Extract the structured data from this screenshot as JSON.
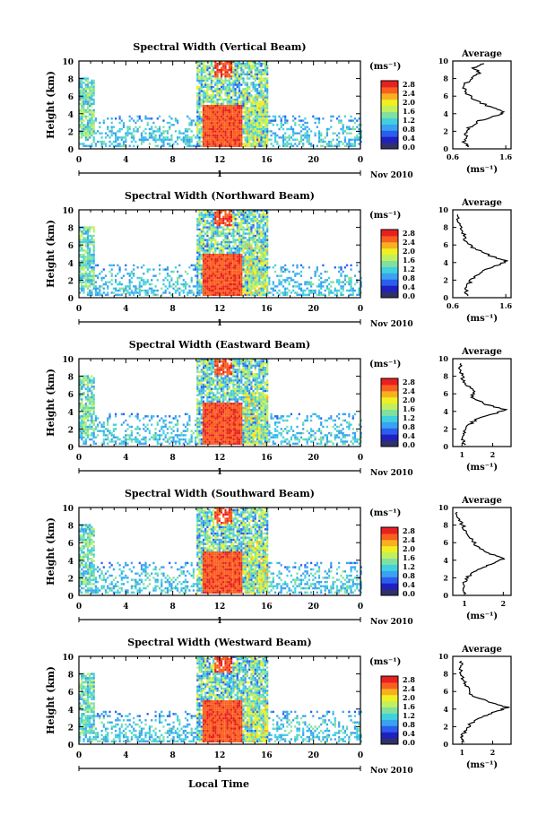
{
  "figure": {
    "xlabel": "Local Time",
    "date_label": "Nov 2010",
    "day_label": "1",
    "height_label": "Height (km)",
    "unit_label": "(ms⁻¹)",
    "avg_title": "Average"
  },
  "colorbar": {
    "ticks": [
      "2.8",
      "2.4",
      "2.0",
      "1.6",
      "1.2",
      "0.8",
      "0.4",
      "0.0"
    ],
    "colors": [
      "#30306a",
      "#2020c0",
      "#2b5ef0",
      "#3aa2f0",
      "#40d0e0",
      "#80e0a0",
      "#c0f060",
      "#f0f020",
      "#f8b020",
      "#f86020",
      "#e82020"
    ]
  },
  "chart_data": [
    {
      "type": "heatmap",
      "title": "Spectral Width (Vertical Beam)",
      "xlabel": "Local Time",
      "ylabel": "Height (km)",
      "x_ticks": [
        "0",
        "4",
        "8",
        "12",
        "16",
        "20",
        "0"
      ],
      "y_ticks": [
        "0",
        "2",
        "4",
        "6",
        "8",
        "10"
      ],
      "xlim": [
        0,
        24
      ],
      "ylim": [
        0,
        10
      ],
      "colorbar_range": [
        0.0,
        2.8
      ],
      "average": {
        "title": "Average",
        "xlabel": "(ms⁻¹)",
        "x_ticks": [
          "0.6",
          "1.6"
        ],
        "xlim": [
          0.6,
          1.7
        ],
        "y_ticks": [
          "0",
          "2",
          "4",
          "6",
          "8",
          "10"
        ],
        "profile": [
          [
            0.9,
            0.2
          ],
          [
            0.8,
            0.8
          ],
          [
            0.85,
            1.6
          ],
          [
            0.9,
            2.4
          ],
          [
            1.1,
            3.2
          ],
          [
            1.45,
            3.8
          ],
          [
            1.55,
            4.2
          ],
          [
            1.3,
            4.8
          ],
          [
            1.0,
            5.6
          ],
          [
            0.85,
            6.4
          ],
          [
            0.8,
            7.2
          ],
          [
            0.95,
            8.0
          ],
          [
            1.1,
            8.6
          ],
          [
            1.0,
            9.2
          ],
          [
            1.2,
            9.8
          ]
        ]
      }
    },
    {
      "type": "heatmap",
      "title": "Spectral Width (Northward Beam)",
      "xlabel": "Local Time",
      "ylabel": "Height (km)",
      "x_ticks": [
        "0",
        "4",
        "8",
        "12",
        "16",
        "20",
        "0"
      ],
      "y_ticks": [
        "0",
        "2",
        "4",
        "6",
        "8",
        "10"
      ],
      "xlim": [
        0,
        24
      ],
      "ylim": [
        0,
        10
      ],
      "colorbar_range": [
        0.0,
        2.8
      ],
      "average": {
        "title": "Average",
        "xlabel": "(ms⁻¹)",
        "x_ticks": [
          "0.6",
          "1.6"
        ],
        "xlim": [
          0.6,
          1.7
        ],
        "y_ticks": [
          "0",
          "2",
          "4",
          "6",
          "8",
          "10"
        ],
        "profile": [
          [
            0.85,
            0.2
          ],
          [
            0.85,
            0.8
          ],
          [
            0.9,
            1.6
          ],
          [
            1.0,
            2.4
          ],
          [
            1.2,
            3.2
          ],
          [
            1.5,
            3.8
          ],
          [
            1.6,
            4.2
          ],
          [
            1.3,
            4.8
          ],
          [
            1.0,
            5.6
          ],
          [
            0.85,
            6.4
          ],
          [
            0.8,
            7.2
          ],
          [
            0.75,
            8.0
          ],
          [
            0.7,
            8.8
          ],
          [
            0.68,
            9.6
          ]
        ]
      }
    },
    {
      "type": "heatmap",
      "title": "Spectral Width (Eastward Beam)",
      "xlabel": "Local Time",
      "ylabel": "Height (km)",
      "x_ticks": [
        "0",
        "4",
        "8",
        "12",
        "16",
        "20",
        "0"
      ],
      "y_ticks": [
        "0",
        "2",
        "4",
        "6",
        "8",
        "10"
      ],
      "xlim": [
        0,
        24
      ],
      "ylim": [
        0,
        10
      ],
      "colorbar_range": [
        0.0,
        2.8
      ],
      "average": {
        "title": "Average",
        "xlabel": "(ms⁻¹)",
        "x_ticks": [
          "1",
          "2"
        ],
        "xlim": [
          0.7,
          2.6
        ],
        "y_ticks": [
          "0",
          "2",
          "4",
          "6",
          "8",
          "10"
        ],
        "profile": [
          [
            1.1,
            0.2
          ],
          [
            1.0,
            0.8
          ],
          [
            1.05,
            1.6
          ],
          [
            1.2,
            2.4
          ],
          [
            1.5,
            3.2
          ],
          [
            2.1,
            3.8
          ],
          [
            2.4,
            4.2
          ],
          [
            1.8,
            4.8
          ],
          [
            1.3,
            5.6
          ],
          [
            1.4,
            6.4
          ],
          [
            1.1,
            7.2
          ],
          [
            1.0,
            8.0
          ],
          [
            0.9,
            8.8
          ],
          [
            1.0,
            9.6
          ]
        ]
      }
    },
    {
      "type": "heatmap",
      "title": "Spectral Width (Southward Beam)",
      "xlabel": "Local Time",
      "ylabel": "Height (km)",
      "x_ticks": [
        "0",
        "4",
        "8",
        "12",
        "16",
        "20",
        "0"
      ],
      "y_ticks": [
        "0",
        "2",
        "4",
        "6",
        "8",
        "10"
      ],
      "xlim": [
        0,
        24
      ],
      "ylim": [
        0,
        10
      ],
      "colorbar_range": [
        0.0,
        2.8
      ],
      "average": {
        "title": "Average",
        "xlabel": "(ms⁻¹)",
        "x_ticks": [
          "1",
          "2"
        ],
        "xlim": [
          0.7,
          2.2
        ],
        "y_ticks": [
          "0",
          "2",
          "4",
          "6",
          "8",
          "10"
        ],
        "profile": [
          [
            1.0,
            0.2
          ],
          [
            0.95,
            0.8
          ],
          [
            1.0,
            1.6
          ],
          [
            1.15,
            2.4
          ],
          [
            1.5,
            3.2
          ],
          [
            1.85,
            3.8
          ],
          [
            2.0,
            4.2
          ],
          [
            1.6,
            4.8
          ],
          [
            1.3,
            5.6
          ],
          [
            1.2,
            6.4
          ],
          [
            1.05,
            7.2
          ],
          [
            0.95,
            8.0
          ],
          [
            0.85,
            8.8
          ],
          [
            0.8,
            9.6
          ]
        ]
      }
    },
    {
      "type": "heatmap",
      "title": "Spectral Width (Westward Beam)",
      "xlabel": "Local Time",
      "ylabel": "Height (km)",
      "x_ticks": [
        "0",
        "4",
        "8",
        "12",
        "16",
        "20",
        "0"
      ],
      "y_ticks": [
        "0",
        "2",
        "4",
        "6",
        "8",
        "10"
      ],
      "xlim": [
        0,
        24
      ],
      "ylim": [
        0,
        10
      ],
      "colorbar_range": [
        0.0,
        2.8
      ],
      "average": {
        "title": "Average",
        "xlabel": "(ms⁻¹)",
        "x_ticks": [
          "1",
          "2"
        ],
        "xlim": [
          0.7,
          2.6
        ],
        "y_ticks": [
          "0",
          "2",
          "4",
          "6",
          "8",
          "10"
        ],
        "profile": [
          [
            1.1,
            0.2
          ],
          [
            1.0,
            0.8
          ],
          [
            1.1,
            1.6
          ],
          [
            1.3,
            2.4
          ],
          [
            1.7,
            3.2
          ],
          [
            2.2,
            3.8
          ],
          [
            2.5,
            4.2
          ],
          [
            1.9,
            4.8
          ],
          [
            1.3,
            5.6
          ],
          [
            1.2,
            6.4
          ],
          [
            1.05,
            7.2
          ],
          [
            1.0,
            8.0
          ],
          [
            0.95,
            8.8
          ],
          [
            1.0,
            9.6
          ]
        ]
      }
    }
  ]
}
